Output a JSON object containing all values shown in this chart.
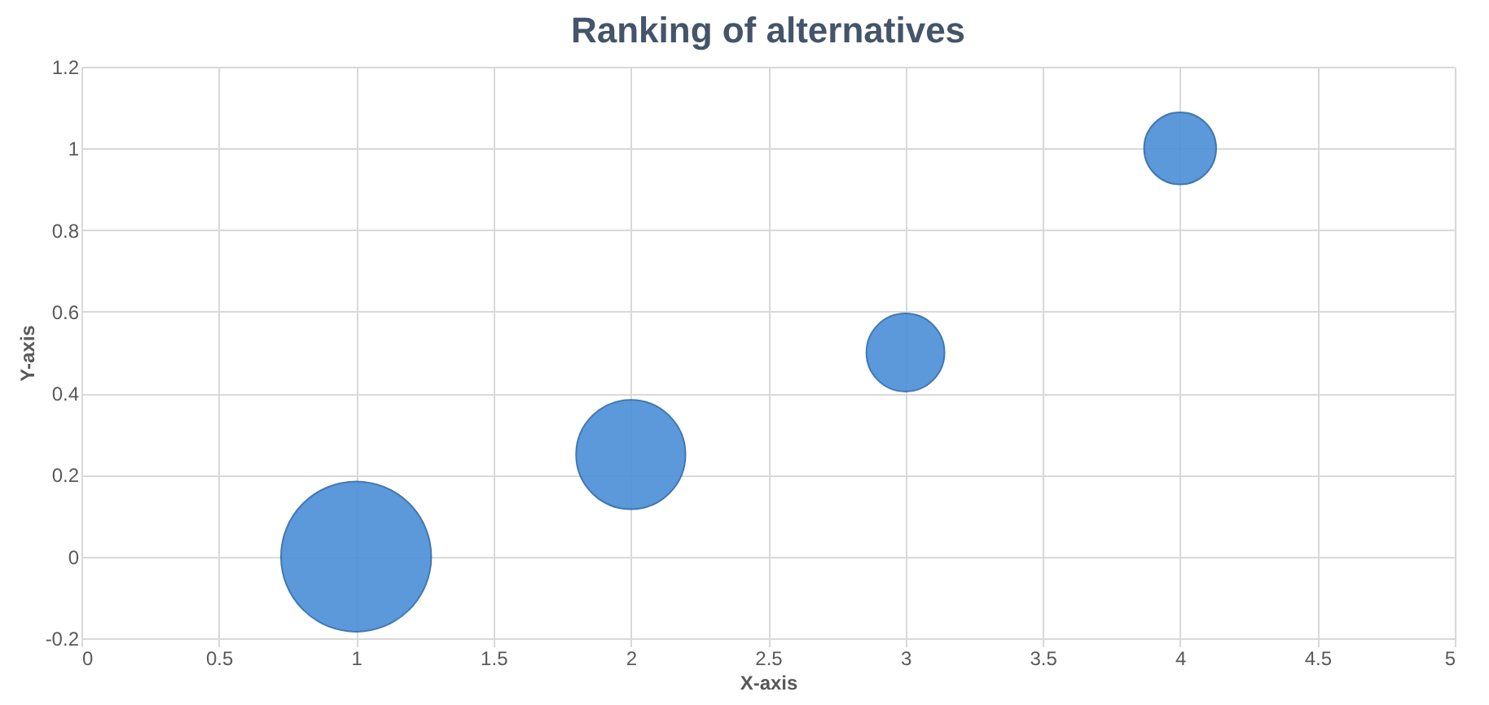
{
  "chart_data": {
    "type": "bubble",
    "title": "Ranking of alternatives",
    "xlabel": "X-axis",
    "ylabel": "Y-axis",
    "x": [
      1,
      2,
      3,
      4
    ],
    "series": [
      {
        "color": "#4a8fd8",
        "values": [
          0,
          0.25,
          0.5,
          1
        ],
        "sizes": [
          1,
          0.53,
          0.27,
          0.23
        ]
      }
    ],
    "xlim": [
      0,
      5
    ],
    "xticks": [
      0,
      0.5,
      1,
      1.5,
      2,
      2.5,
      3,
      3.5,
      4,
      4.5,
      5
    ],
    "ylim": [
      -0.2,
      1.2
    ],
    "yticks": [
      -0.2,
      0,
      0.2,
      0.4,
      0.6,
      0.8,
      1,
      1.2
    ],
    "grid": true,
    "legend": false
  }
}
